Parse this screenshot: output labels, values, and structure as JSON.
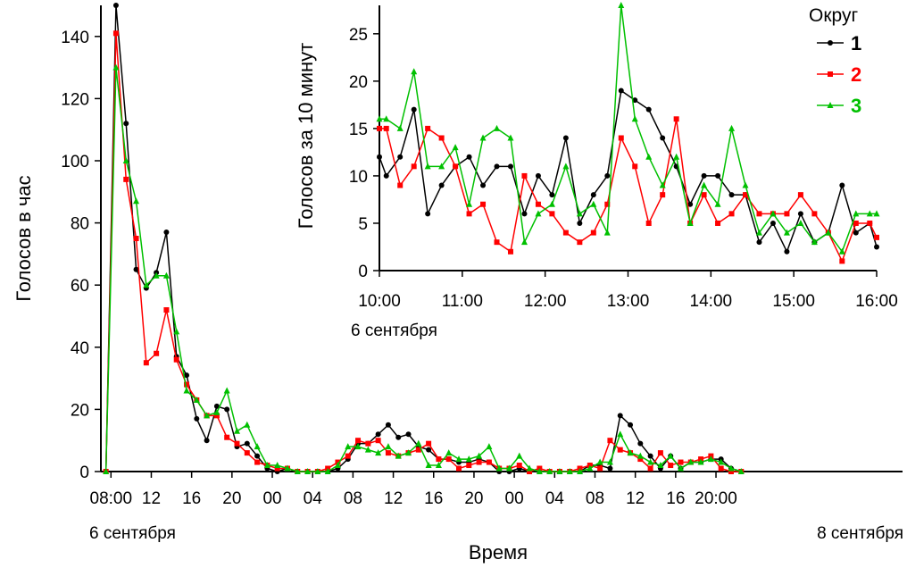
{
  "chart_data": [
    {
      "type": "line",
      "id": "main",
      "title": "",
      "xlabel": "Время",
      "ylabel": "Голосов в час",
      "ylim": [
        0,
        150
      ],
      "yticks": [
        0,
        20,
        40,
        60,
        80,
        100,
        120,
        140
      ],
      "xlim": [
        7,
        86.5
      ],
      "xticks": [
        {
          "x": 8,
          "label": "08:00"
        },
        {
          "x": 12,
          "label": "12"
        },
        {
          "x": 16,
          "label": "16"
        },
        {
          "x": 20,
          "label": "20"
        },
        {
          "x": 24,
          "label": "00"
        },
        {
          "x": 28,
          "label": "04"
        },
        {
          "x": 32,
          "label": "08"
        },
        {
          "x": 36,
          "label": "12"
        },
        {
          "x": 40,
          "label": "16"
        },
        {
          "x": 44,
          "label": "20"
        },
        {
          "x": 48,
          "label": "00"
        },
        {
          "x": 52,
          "label": "04"
        },
        {
          "x": 56,
          "label": "08"
        },
        {
          "x": 60,
          "label": "12"
        },
        {
          "x": 64,
          "label": "16"
        },
        {
          "x": 68,
          "label": "20:00"
        }
      ],
      "date_labels": {
        "start": "6 сентября",
        "end": "8 сентября"
      },
      "x": [
        7.5,
        8.5,
        9.5,
        10.5,
        11.5,
        12.5,
        13.5,
        14.5,
        15.5,
        16.5,
        17.5,
        18.5,
        19.5,
        20.5,
        21.5,
        22.5,
        23.5,
        24.5,
        25.5,
        26.5,
        27.5,
        28.5,
        29.5,
        30.5,
        31.5,
        32.5,
        33.5,
        34.5,
        35.5,
        36.5,
        37.5,
        38.5,
        39.5,
        40.5,
        41.5,
        42.5,
        43.5,
        44.5,
        45.5,
        46.5,
        47.5,
        48.5,
        49.5,
        50.5,
        51.5,
        52.5,
        53.5,
        54.5,
        55.5,
        56.5,
        57.5,
        58.5,
        59.5,
        60.5,
        61.5,
        62.5,
        63.5,
        64.5,
        65.5,
        66.5,
        67.5,
        68.5,
        69.5,
        70.5
      ],
      "series": [
        {
          "name": "1",
          "color": "#000000",
          "marker": "circle",
          "values": [
            0,
            150,
            112,
            65,
            59,
            64,
            77,
            37,
            31,
            17,
            10,
            21,
            20,
            8,
            9,
            5,
            1,
            0,
            1,
            0,
            0,
            0,
            0,
            1,
            4,
            9,
            9,
            12,
            15,
            11,
            12,
            8,
            7,
            4,
            4,
            3,
            3,
            4,
            3,
            0,
            0,
            1,
            0,
            0,
            0,
            0,
            0,
            0,
            2,
            2,
            1,
            18,
            15,
            9,
            5,
            1,
            5,
            1,
            3,
            3,
            4,
            4,
            1,
            0
          ]
        },
        {
          "name": "2",
          "color": "#ff0000",
          "marker": "square",
          "values": [
            0,
            141,
            94,
            75,
            35,
            38,
            52,
            36,
            28,
            23,
            18,
            18,
            11,
            9,
            6,
            3,
            2,
            1,
            1,
            0,
            0,
            0,
            1,
            3,
            5,
            10,
            9,
            10,
            6,
            5,
            6,
            7,
            9,
            4,
            4,
            1,
            2,
            3,
            3,
            1,
            1,
            2,
            0,
            1,
            0,
            0,
            0,
            1,
            2,
            1,
            10,
            7,
            6,
            4,
            1,
            6,
            2,
            3,
            3,
            4,
            5,
            1,
            0,
            0
          ]
        },
        {
          "name": "3",
          "color": "#00c000",
          "marker": "triangle",
          "values": [
            0,
            130,
            100,
            87,
            60,
            63,
            63,
            45,
            26,
            23,
            18,
            19,
            26,
            13,
            15,
            8,
            2,
            2,
            1,
            0,
            0,
            0,
            0,
            2,
            8,
            8,
            7,
            6,
            8,
            5,
            6,
            9,
            2,
            2,
            6,
            4,
            4,
            5,
            8,
            1,
            1,
            5,
            1,
            0,
            0,
            0,
            0,
            0,
            1,
            3,
            3,
            12,
            6,
            5,
            3,
            2,
            5,
            1,
            3,
            3,
            4,
            3,
            1,
            0
          ]
        }
      ]
    },
    {
      "type": "line",
      "id": "inset",
      "title": "",
      "xlabel": "",
      "ylabel": "Голосов за 10 минут",
      "ylim": [
        0,
        28
      ],
      "yticks": [
        0,
        5,
        10,
        15,
        20,
        25
      ],
      "xlim": [
        10,
        16
      ],
      "xticks": [
        {
          "x": 10,
          "label": "10:00"
        },
        {
          "x": 11,
          "label": "11:00"
        },
        {
          "x": 12,
          "label": "12:00"
        },
        {
          "x": 13,
          "label": "13:00"
        },
        {
          "x": 14,
          "label": "14:00"
        },
        {
          "x": 15,
          "label": "15:00"
        },
        {
          "x": 16,
          "label": "16:00"
        }
      ],
      "date_label": "6 сентября",
      "legend_title": "Округ",
      "legend_position": "top-right",
      "x": [
        10,
        10.0833,
        10.25,
        10.4167,
        10.5833,
        10.75,
        10.9167,
        11.0833,
        11.25,
        11.4167,
        11.5833,
        11.75,
        11.9167,
        12.0833,
        12.25,
        12.4167,
        12.5833,
        12.75,
        12.9167,
        13.0833,
        13.25,
        13.4167,
        13.5833,
        13.75,
        13.9167,
        14.0833,
        14.25,
        14.4167,
        14.5833,
        14.75,
        14.9167,
        15.0833,
        15.25,
        15.4167,
        15.5833,
        15.75,
        15.9167,
        16
      ],
      "series": [
        {
          "name": "1",
          "color": "#000000",
          "marker": "circle",
          "values": [
            12,
            10,
            12,
            17,
            6,
            9,
            11,
            12,
            9,
            11,
            11,
            6,
            10,
            8,
            14,
            5,
            8,
            10,
            19,
            18,
            17,
            14,
            11,
            7,
            10,
            10,
            8,
            8,
            3,
            5,
            2,
            6,
            3,
            4,
            9,
            4,
            5,
            2.5
          ]
        },
        {
          "name": "2",
          "color": "#ff0000",
          "marker": "square",
          "values": [
            15,
            15,
            9,
            11,
            15,
            14,
            11,
            6,
            7,
            3,
            2,
            10,
            7,
            6,
            4,
            3,
            4,
            7,
            14,
            11,
            5,
            8,
            16,
            5,
            8,
            5,
            6,
            8,
            6,
            6,
            6,
            8,
            6,
            4,
            1,
            5,
            5,
            3.5
          ]
        },
        {
          "name": "3",
          "color": "#00c000",
          "marker": "triangle",
          "values": [
            16,
            16,
            15,
            21,
            11,
            11,
            13,
            7,
            14,
            15,
            14,
            3,
            6,
            7,
            11,
            6,
            7,
            4,
            28,
            16,
            12,
            9,
            12,
            5,
            9,
            7,
            15,
            9,
            4,
            6,
            4,
            5,
            3,
            4,
            2,
            6,
            6,
            6
          ]
        }
      ]
    }
  ]
}
